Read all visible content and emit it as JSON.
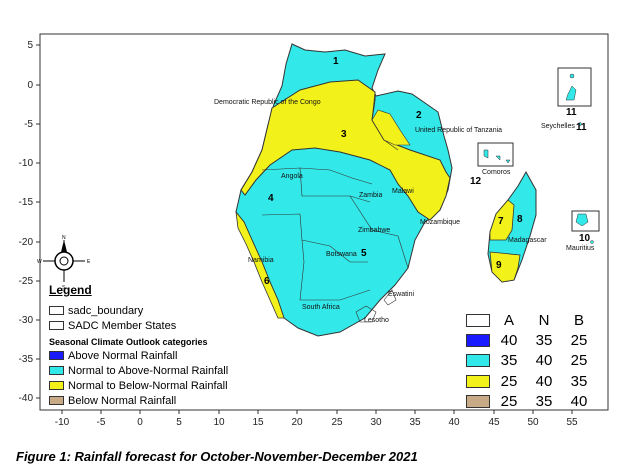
{
  "axes": {
    "y_ticks": [
      "5",
      "0",
      "-5",
      "-10",
      "-15",
      "-20",
      "-25",
      "-30",
      "-35",
      "-40"
    ],
    "x_ticks": [
      "-10",
      "-5",
      "0",
      "5",
      "10",
      "15",
      "20",
      "25",
      "30",
      "35",
      "40",
      "45",
      "50",
      "55"
    ]
  },
  "countries": {
    "drc": "Democratic Republic of the Congo",
    "tanzania": "United Republic of Tanzania",
    "seychelles": "Seychelles",
    "comoros": "Comoros",
    "angola": "Angola",
    "zambia": "Zambia",
    "malawi": "Malawi",
    "mozambique": "Mozambique",
    "zimbabwe": "Zimbabwe",
    "madagascar": "Madagascar",
    "mauritius": "Mauritius",
    "namibia": "Namibia",
    "botswana": "Botswana",
    "eswatini": "Eswatini",
    "south_africa": "South Africa",
    "lesotho": "Lesotho"
  },
  "zones": [
    "1",
    "2",
    "3",
    "4",
    "5",
    "6",
    "7",
    "8",
    "9",
    "10",
    "11",
    "12"
  ],
  "legend": {
    "title": "Legend",
    "boundary": "sadc_boundary",
    "member_states": "SADC Member States",
    "categories_title": "Seasonal Climate Outlook categories",
    "categories": [
      {
        "label": "Above Normal Rainfall",
        "color": "#1a1aff"
      },
      {
        "label": "Normal to Above-Normal Rainfall",
        "color": "#33e8e8"
      },
      {
        "label": "Normal to Below-Normal Rainfall",
        "color": "#f2f21a"
      },
      {
        "label": "Below Normal Rainfall",
        "color": "#c8aa87"
      }
    ]
  },
  "prob_table": {
    "headers": [
      "A",
      "N",
      "B"
    ],
    "rows": [
      {
        "color": "#1a1aff",
        "values": [
          "40",
          "35",
          "25"
        ]
      },
      {
        "color": "#33e8e8",
        "values": [
          "35",
          "40",
          "25"
        ]
      },
      {
        "color": "#f2f21a",
        "values": [
          "25",
          "40",
          "35"
        ]
      },
      {
        "color": "#c8aa87",
        "values": [
          "25",
          "35",
          "40"
        ]
      }
    ]
  },
  "compass": {
    "n": "N",
    "s": "S",
    "e": "E",
    "w": "W"
  },
  "caption": "Figure 1: Rainfall forecast for October-November-December 2021"
}
